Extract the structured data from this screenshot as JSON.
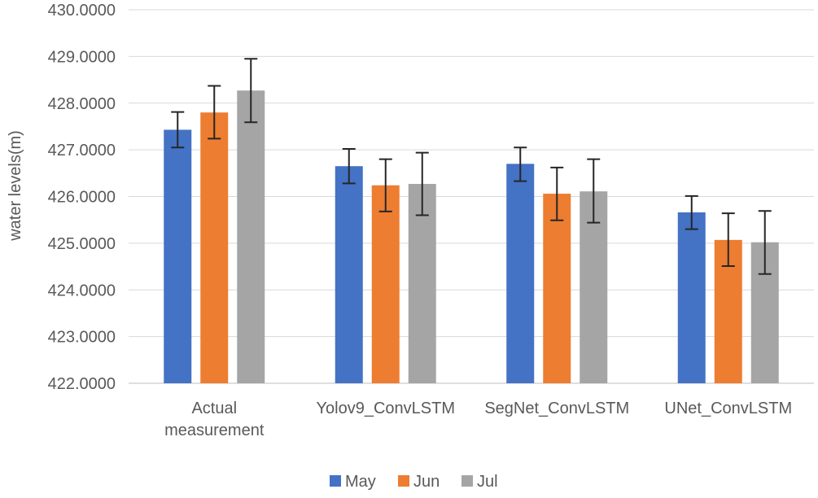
{
  "chart_data": {
    "type": "bar",
    "title": "",
    "xlabel": "",
    "ylabel": "water levels(m)",
    "ylim": [
      422,
      430
    ],
    "yticks": [
      "422.0000",
      "423.0000",
      "424.0000",
      "425.0000",
      "426.0000",
      "427.0000",
      "428.0000",
      "429.0000",
      "430.0000"
    ],
    "categories": [
      [
        "Actual",
        "measurement"
      ],
      [
        "Yolov9_ConvLSTM"
      ],
      [
        "SegNet_ConvLSTM"
      ],
      [
        "UNet_ConvLSTM"
      ]
    ],
    "series": [
      {
        "name": "May",
        "color": "#4472C4",
        "values": [
          427.43,
          426.65,
          426.7,
          425.66
        ],
        "error_low": [
          427.05,
          426.28,
          426.33,
          425.3
        ],
        "error_high": [
          427.81,
          427.02,
          427.05,
          426.01
        ]
      },
      {
        "name": "Jun",
        "color": "#ED7D31",
        "values": [
          427.8,
          426.24,
          426.06,
          425.07
        ],
        "error_low": [
          427.24,
          425.68,
          425.49,
          424.51
        ],
        "error_high": [
          428.37,
          426.8,
          426.62,
          425.64
        ]
      },
      {
        "name": "Jul",
        "color": "#A5A5A5",
        "values": [
          428.27,
          426.27,
          426.11,
          425.02
        ],
        "error_low": [
          427.59,
          425.6,
          425.44,
          424.34
        ],
        "error_high": [
          428.95,
          426.94,
          426.8,
          425.69
        ]
      }
    ],
    "grid": true,
    "legend": "bottom"
  }
}
